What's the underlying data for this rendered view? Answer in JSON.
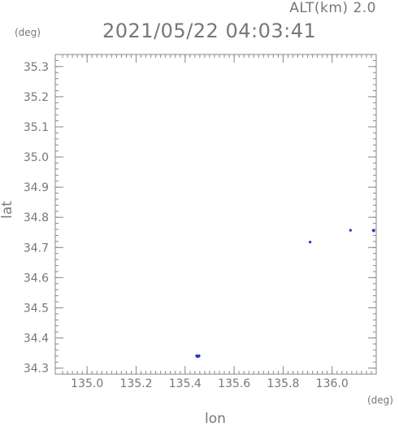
{
  "header": {
    "alt_label": "ALT(km) 2.0",
    "title": "2021/05/22 04:03:41"
  },
  "chart_data": {
    "type": "scatter",
    "title": "2021/05/22 04:03:41",
    "xlabel": "lon",
    "ylabel": "lat",
    "x_unit": "(deg)",
    "y_unit": "(deg)",
    "xlim": [
      134.87,
      136.18
    ],
    "ylim": [
      34.28,
      35.34
    ],
    "x_ticks": [
      135.0,
      135.2,
      135.4,
      135.6,
      135.8,
      136.0
    ],
    "x_tick_labels": [
      "135.0",
      "135.2",
      "135.4",
      "135.6",
      "135.8",
      "136.0"
    ],
    "y_ticks": [
      34.3,
      34.4,
      34.5,
      34.6,
      34.7,
      34.8,
      34.9,
      35.0,
      35.1,
      35.2,
      35.3
    ],
    "y_tick_labels": [
      "34.3",
      "34.4",
      "34.5",
      "34.6",
      "34.7",
      "34.8",
      "34.9",
      "35.0",
      "35.1",
      "35.2",
      "35.3"
    ],
    "grid": false,
    "point_color": "#2233cc",
    "axis_color": "#888888",
    "points": [
      {
        "x": 135.447,
        "y": 34.341
      },
      {
        "x": 135.452,
        "y": 34.34
      },
      {
        "x": 135.457,
        "y": 34.341
      },
      {
        "x": 135.45,
        "y": 34.338
      },
      {
        "x": 135.455,
        "y": 34.339
      },
      {
        "x": 135.91,
        "y": 34.718
      },
      {
        "x": 136.168,
        "y": 34.757
      },
      {
        "x": 136.17,
        "y": 34.755
      },
      {
        "x": 136.075,
        "y": 34.757
      }
    ]
  }
}
